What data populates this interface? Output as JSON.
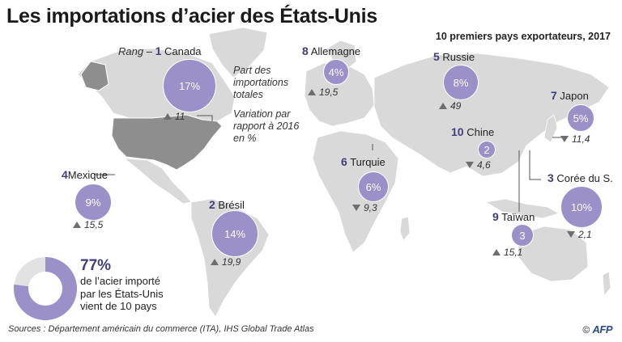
{
  "title": "Les importations d’acier des États-Unis",
  "subtitle": "10 premiers pays exportateurs, 2017",
  "legend": {
    "rang_word": "Rang",
    "dash": "–",
    "share_note": "Part des importations totales",
    "variation_note": "Variation par rapport à 2016 en %"
  },
  "countries": [
    {
      "rank": "1",
      "name": "Canada",
      "share": "17%",
      "trend": "up",
      "variation": "11"
    },
    {
      "rank": "2",
      "name": "Brésil",
      "share": "14%",
      "trend": "up",
      "variation": "19,9"
    },
    {
      "rank": "3",
      "name": "Corée du S.",
      "share": "10%",
      "trend": "down",
      "variation": "2,1"
    },
    {
      "rank": "4",
      "name": "Mexique",
      "share": "9%",
      "trend": "up",
      "variation": "15,5"
    },
    {
      "rank": "5",
      "name": "Russie",
      "share": "8%",
      "trend": "up",
      "variation": "49"
    },
    {
      "rank": "6",
      "name": "Turquie",
      "share": "6%",
      "trend": "down",
      "variation": "9,3"
    },
    {
      "rank": "7",
      "name": "Japon",
      "share": "5%",
      "trend": "down",
      "variation": "11,4"
    },
    {
      "rank": "8",
      "name": "Allemagne",
      "share": "4%",
      "trend": "up",
      "variation": "19,5"
    },
    {
      "rank": "9",
      "name": "Taïwan",
      "share": "3",
      "trend": "up",
      "variation": "15,1"
    },
    {
      "rank": "10",
      "name": "Chine",
      "share": "2",
      "trend": "down",
      "variation": "4,6"
    }
  ],
  "summary": {
    "pct": "77%",
    "pct_value": 77,
    "line1": "de l’acier importé",
    "line2": "par les États-Unis",
    "line3": "vient de 10 pays"
  },
  "sources": "Sources : Département américain du commerce (ITA), IHS Global Trade Atlas",
  "credit_symbol": "©",
  "credit_agency": "AFP",
  "colors": {
    "bubble": "#9c90c9",
    "rank": "#3f3e7a",
    "land": "#d6d6d6",
    "usa": "#8e8e8e",
    "donut_bg": "#e2e2e2"
  }
}
